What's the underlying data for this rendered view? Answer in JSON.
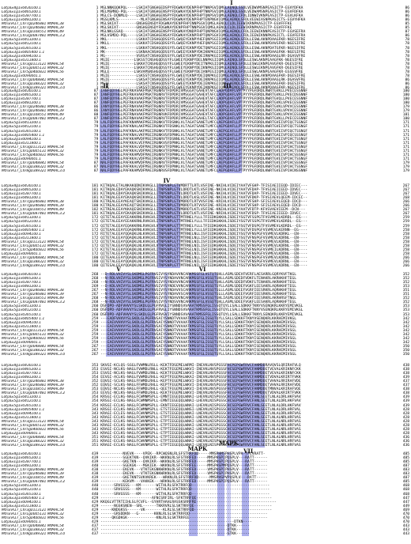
{
  "species_rows": [
    "LotjaGi4g1v0430100.1",
    "LotjaGi1g1v0465200.1",
    "LotjaGi1g1v0387700.1",
    "LotjaGi1g1v0481200.1",
    "MtrunA17_Chr7g0246881 MtMAC38",
    "MtrunA17_Chr7g0246881 MtMAC39",
    "MtrunA17_Chr3g0108551 MtMAC49",
    "MtrunA17_Chr2g0087481 MtMAC3.2",
    "LotjaGi5g1v0413200.1",
    "LotjaGi5g1v0412100.1",
    "LotjaGi5g1v0365100.1",
    "LotjaGi3g1v0405400 1.1",
    "LotjaGi2g1v0094100.1",
    "LotjaGi3g1v0311800.1",
    "MtrunA17_Chr3g0113121 MtMAC54",
    "MtrunA17_Chr1g0005131 MtMAC32",
    "MtrunA17_Chr5g0400831 MtMAC56",
    "LotjaGi2g1v0090001.1",
    "MtrunA17_Chr7g0048841 MtMAC54",
    "MtrunA17_Chr3g0388321 MtMAC32",
    "MtrunA17_Chr8g0389321 MtMAC3.0"
  ],
  "blocks": [
    {
      "starts": [
        "1",
        "1",
        "1",
        "1",
        "1",
        "1",
        "1",
        "1",
        "1",
        "1",
        "1",
        "1",
        "1",
        "1",
        "1",
        "1",
        "1",
        "1",
        "1",
        "1",
        "1"
      ],
      "seqs": [
        "MGLNNKQQKPQL----LSKIATGNGHGEDSPYFDGWKAYDENPFHPTNNPGVIQMGLAENQLSSDLVEDWVMSNPEASICTP-EGVYDFKA",
        "MELMSMNQ-PQL----LSKIATGNGHGENSPYFDGWKAYDENPFHPTNNPSVIQMGLAENQLSSDLVEDWAMSNPEASICTP-EGVFDFKA",
        "MGLCS-DQNMLQ----LSKIATGNGHGENSPYFDGWKAYDENPFHPTQNPSVIQMGLAENQLCFDLIQNWIVKNPEASICTP-EGVLKFKA",
        "MGSLKMLS----------MLATGNGHGENSAYFDGWKAYDENPFHPTENPNGVIQMGLAENQLSFDLVEEWIASNPKASICTS-EGVYHFKA",
        "MGLSKIAT--------GNGHGENSDYFDGWKAYDENPFHPINNPSGVIQMGLAENQLCLDLIEEWIKRNPKASICTP-EGVFFFKE",
        "MGLSKIAT--------GNGHGENSDYFDGWKAYDENPFHPTNNPSGVIQMGLAENQLCLDLIEEWIKRNPKASICTP-EGVFFFKE",
        "MGLNKLGSAQ------LSKIATGNGHGENSPYFDGWKAYDNDPFHPTQNPNGVIQMGLAENQLCFDLIEEWIKNNPEASICTP-EGVSEFRA",
        "MGLVSMDQ-PQL----LSKIATGNGHGENSAYFDGWKAYEKNPFHPTQNPSGVIQMGLAENQLCFDLIEEWIKNNPKASICTL-EGVFEFRA",
        "MKL-------------LSKKATCDSHGQDSSYFLGWQEYEKNPYHEFQNPSGIIQMGLAENQLSFDLLESWLAKNPDAAGFKR-NGESIFRE",
        "MKLL------------LSKKATCDSHGQDSSYFLGWQEYEKNPYHEFQNPSGIIQMGLAENQLSFDLLESWLAKNPDAVGFKR-NGESIFRE",
        "MKL-------------LSKKATCNSHGQDSSYFLGWEEYEKNPYDETQNPSGIIQMGLAENQLSFDLLESWLAKNPDATGFKR-NGESIFRE",
        "MK--------------LSKNAACNSHGQDSSYFLGWEEYEKNPYDKIKNPKGIIQMGLAENQLSFDLLESWLAKNPDAAGFKK-NGESIFRE",
        "MG--------------VSRSATCNSHGQDSSYFLGWEEYEKNPYDEIRNPKGIIQMGLAENQLSFDLLESWLAKNPDAAGLRR-DGASVFRE",
        "MGIE-----------LSKSSTCNSHGQDSSYFLGWEEYEKNPYDELNNPKGIIQMGLAENQLSFDLLESWLAKNPEAAGFKK-NGESIFRE",
        "MGIE-----------LSKKATCNSHGQDSSYFLGWEEYEKNPYDEITNPKGIIQMGLAENQLSFDLLESWLEKNPEAVGFKR-DGESIFRE",
        "MGIE-----------LSKKATCNSHGQDSSYFLGWEEYEKNPYDEIKNPKGIIQMGLAENQLSFDLLESWLEKNPEAVGFKR-DGESIFRE",
        "MGLE-----------LSKVAMSNSHGQDSSYFLGWEEYEKNPYDEIANPEGIIQMGLAENQLSFDLLESWLAKNPEAAGFKR-EGSSVFRE",
        "MGIE------------LSKSSTCNSHGQDSSYFLGWEEYEKNPYDEIQNPKGIIQMGLAENQLSFDLLESWLAKNPDAAGFKR-DGESIFRE",
        "MGIE------------LSKSATCNSHGQDSSYFLGWEEYEKNPYDEIKNPKGIIQMGLAENQLSFDLLESWLAKNPDAAGLRK-DGASVFRE",
        "MGIE------------LSKSATCNSHGQDSSYFLGWEEYEKNPYDEIENPKGIIQMGLAENQLSFDLLESWLAKNPDAAGFKR-DGESIFRE",
        "MGIE------------LSKSSTCNSHGQDSSYFLGWEEYEKNPYDEIKNPKGIIQMGLAENQLSFDLLESWLAKNPDAAGFKR-NGESIFRE"
      ],
      "ends": [
        "86",
        "86",
        "86",
        "86",
        "85",
        "85",
        "87",
        "86",
        "78",
        "78",
        "78",
        "78",
        "78",
        "78",
        "78",
        "78",
        "78",
        "78",
        "86",
        "86",
        "86"
      ]
    },
    {
      "starts": [
        "87",
        "87",
        "87",
        "87",
        "86",
        "86",
        "88",
        "87",
        "79",
        "79",
        "79",
        "79",
        "79",
        "79",
        "79",
        "79",
        "79",
        "79",
        "87",
        "87",
        "87"
      ],
      "seqs": [
        "IANFQDYHGLPEFRKAVAKFMSKTRGNRVTFDPDRIVMSGGATGAHEVTAFCLADPGDAFLVPTPYYPGFDRDLRWRTGVKLLPVECESSNNF",
        "IANFQDYHGLPEFRKAVAKFMSKTRGNRVTFDPDRIVMSGGATGAHEVTAFCLADPGDAFLVPIPYYPGFDRDLRWRTGVKLLPVECDSSNNF",
        "IANFQDYHGLPEFRKAVAKFMSKTRGNRVTFDPDRIVMSGGATGAHEVTAFCLADPGDAFLVPTPYYPGFDRDLRWRTGVQLLPVECESSNNF",
        "IANFQDYHGLPEFRKAVAKFMSKTRGNRVTFDPERIVMSGGATGAHEVTAFCLADPGDAFLVPTPYYPGFDRDLRWRTGVKLVPVECESSNNF",
        "IANYQDYHGLPEFRNAVAKFMSRTRGNRVTFDPDRIVMSGGATGAHEVTAFCLADPGEAFLVPIPYYPGFDRDLRWRTGVKLVPVVCESSNNF",
        "IANYQDYHGLPEFRNAVAKFMSRTRGNRVTFDPDRIVMSGGATGAHEVTAFCLADPGEAFLVPIPYYPGFDRDLRWRTGVKLVPVVCESSNNF",
        "IANFQDYHGLPEFRNAVAKFMSRTRGNRVKFDPDRIVMSGGATGAHEVTAFCLADPGDAFLVPTPYYPGFDRDLRWRTGVKLVPVVCESSNNF",
        "IANFQDYHGLPEFRNAVAKFMSRTRGNRVTFDPDRIVMSGGATGAHELTAFCLADPGDAFLVPTPYYPGFDRDLRWRTGVKLLPVECESSNNF",
        "LALFQDYHGLPAFKNAMAKFMSEIRGNKVTFDSNKLVLTAGATSANETLMFCLAEPGDAFLLPTPYYPGFDRDLKWRTGVEIVPIQCTSSNGF",
        "LALFQDYHGLPAFKNALAKFMSEIRGNKVTFDSNKLVLTAGATSANETLMFCLAEPGDAFLLPTPYYPGFDRDLKWRTGVEIVPIQCTSSNGF",
        "LALFQDYHGLPAFKNALAKFMSEIRGNKVTFDSNKLVLTAGATSANETLMFCLAEPGEAFLLPTPYYPGFDRDLKWRTGVEIVPIQCTSSNGF",
        "LALFQDYHGLPAFKNALVKFMSEIRGNKVSFDPNKLVLTAGATSANETLMFCLAEPGDAFLLPTPYYPGFDRDLKWRTGAEIVPIQCSSSNGF",
        "LALFQDYHGLPAFKKAMVDFMSEIRGNRVTFDSNNLVLTAGATSANETLMFCLAEPGDAFLLPTPYYPGFDRDLKWRTGVEIVPIHCTSSNGF",
        "LALFQDYHGLPAFKKALVEFMAEIRGNKVSFDPNKLVLTAGATSANETLMFCLAEPGDAFLLPTPYYPGFDRDLKWRTGVEIVPIHCTSSNGF",
        "LALFQDYHGLPAFKKALVDFMAEIRGNKVTFDPNKLVLTAGATSANETLMFCLAEPGDAFLLPTPYYPGFDRDLKWRTGVEIVPIHCTSSNGF",
        "LALFQDYHGLPAFKKALVDFMAEIRGNKVTFDPNKLVLTAGATSANETLMFCLAEPGDAFLLPTPYYPGFDRDLKWRTGVEIVPIHCTSSNGF",
        "LALFQDYHGLPAFKKAMVDFMAEIRGNRVTFDPNKLVLTAGATSANETLMFCLAEPGDAFLLPTPYYPGFDRDLKWRTGVEIVPIHCSSSNGF",
        "LALFQDYHGLPAFKKALVDFMSEIRGNKVTFDPNKLVLTAGATSANETLMFCLAEPGDAFLLPTPYYPGFDRDLKWRTGVEIVPIHCTSSNGF",
        "NALFQDYHGLPAFKKAMVDFMAEIRGNRVTFDPNKLVLTAGATSANETLMFCLAEPGDAFLLPTPYYPGFDRDLKWRTGVEIVPIHCSSSNGF",
        "NALFQDYHGLPAFKKALVDFMSEIRGNKVTFDPNKLVLTAGATSANETLMFCLAEPGDAFLLPTPYYPGFDRDLKWRTGVEIVPIHCTSSNGF",
        "NALFQDYHGLPAFKKAMVDFMAEIRGNRVSFDPNKLVLTAGATSANETLMFCLAEPGDAFLLPTPYYPGFDRDLKWRTGVEIVPIHCNSSNNF"
      ],
      "ends": [
        "180",
        "180",
        "180",
        "180",
        "179",
        "179",
        "181",
        "180",
        "171",
        "171",
        "171",
        "171",
        "171",
        "171",
        "171",
        "171",
        "171",
        "171",
        "179",
        "179",
        "179"
      ]
    },
    {
      "starts": [
        "181",
        "181",
        "181",
        "181",
        "180",
        "180",
        "182",
        "181",
        "172",
        "172",
        "172",
        "172",
        "172",
        "172",
        "172",
        "172",
        "172",
        "172",
        "180",
        "180",
        "180"
      ],
      "seqs": [
        "KITKQALETALNKAKQDNIKVKGLLITNPSNPLGTVMDRTTLRTLVSFINE-NKIHLVCDEIYAATVFGHP-TFISIAEIIEQD-IDIEC---",
        "KITKQALEDAYEKAQKSNIKVKGLLITNPSNPLGTVLDRDTLKTLVSFINE-NKIHLVCDEIYAATVFDAP-TFVSIAEIIEED-IDVEC---",
        "KITKQALEDAYEKAQKSNIKVKGLLITNPSNPLGTVLDRDTLKTLVSFINE-NKIHLVCDEIYAATVFDAP-TFVSIAEIIEED-IDVEC---",
        "KITKQALEEAYEKAQKSNIKVKGLLITNPSNPLGTVLDRDTLKSLVSFINE-NKIHLVCDEIYAATVFDKP-TFVSIAEVLQEEM-IDCEC--",
        "KITREALEEAYKEAQTSNIKVKGLLITNPSNPLGTVMDRDTLRTVVSFINE-KRIHLVCDEIYAATVFSHP-SFISIAEVLEQED-IDCD---",
        "KITREALEEAYKEAQTSNIKVKGLLITNPSNPLGTVMDRDTLRTVVSFINE-KRIHLVCDEIYAATVFSHP-SFISIAEVLEQED-IDCD---",
        "KITREALEEAYKKAQESNIKVKGLLITNPSNPLGTVMDRDTLKTLVSFINE-KNIHLVCDEIYAATVFDTP-KFVSVAEVIEEM--DCN---",
        "KITKQALEEAYEKAQKSNIKVKGLLITNPSNPLGTVLDRDTLKTLVSFINE-NRIHLVCDEIYAATVFDSP-TFVSIAEIIEED-IDVEC---",
        "QITETALEEAYEEAKKRNLRVKGVLITNPSNPLGTTMTRNELYLLLTFIEDKGKKHLISDEIYSGTVFSSPGTFVSVMEVLKDRDL--EG---",
        "QITETALEEAYEEAKKRNLRVKGVLITNPSNPLGTTMTRNELYLLLTFIEDKGKKHLISDEIYSGTVFSSPGTFVSVMEVLKDRDL--EG---",
        "QITETALEEAYEQAKKRNLRVKGVLVTNPSNPLGTTMTRNELYLLLTFIEDKGKKHLISDEIYSGTVFDSPGTFVSVMEVLKDRDL--EG---",
        "QITEAALEEAYEQAQKRNLKVKGVLITNPSNPLGTTMTRNELYLLLSFIEDKGKKHLISDEIYSGTVFDSPGFVSVMEVLKERNN--EG----",
        "RITETALEEAYQQAQKLNLKVKGVLITNPSNPLGTTMTRNELNLLISFIEDKGKKHLISDEIYSGTVFNSPGFVSVMEVLKDRKL--EN----",
        "QITETALEEAYQQAQKLNLKVKGVLITNPSNPLGTTMTRNELNLLISFIEDKGKKHLISDEIYSGTVFNSPGFVSVMEVLKDRNL--EN----",
        "QITETALEEAYQQAQKLNLKVKGVLVTNPSNPLGTTMTRNELNILISFIEDKGKKHLISDEIYSGTVFNSPGFVSVMEVLKDRNL--EN----",
        "QITETALEEAYQQAQKLNLKVKGVLVTNPSNPLGTTMTRNELNILISFIEDKGKKHLISDEIYSGTVFNSPGFVSVMEVLKDRNL--EN----",
        "KITETALEEAYQQAQKLNLKVKGVLITNPSNPLGTTMTRSELNILISFIEDKGKKHLISDEIYSGTVFNSPGFVSVMEILKDRNL--EN----",
        "QITETALEEAYQEAQKLNLKVKGVLITNPSNPLGTTMTRNELNILISFIEDKGKKHLISDEIYSGTVFNSPGFVSVMEVLKDRNL--EN----",
        "QITEAALEEAYQQAQKLNLKVKGVLITNPSNPLGTTMTRNELNLLISFIEDKGKKHLISDEIYSGTVFNSPGFVSVMEVLKDRNL--EN----",
        "QITETALEEAYQQAQKLNLKVKGVLITNPSNPLGTTMTRNELNILISFIEDKGKKHLISDEIYSGTVFNSPGFVSVMEVLKDRNL--EN----",
        "QITESALEEAYQQAQKLNLKVKGVLITNPSNPLGTTMTRNELNILISFIEDKGKKHLISDEIYSGTVFNSPGFVSVMEVLKDRNL--EN----"
      ],
      "ends": [
        "267",
        "267",
        "267",
        "268",
        "266",
        "266",
        "267",
        "267",
        "259",
        "259",
        "259",
        "258",
        "258",
        "258",
        "258",
        "258",
        "258",
        "258",
        "266",
        "266",
        "266"
      ]
    },
    {
      "starts": [
        "268",
        "268",
        "268",
        "269",
        "267",
        "267",
        "268",
        "268",
        "260",
        "260",
        "260",
        "259",
        "259",
        "259",
        "259",
        "259",
        "259",
        "259",
        "267",
        "267",
        "267"
      ],
      "seqs": [
        "--D-RDLVHIVYSLSKDMGLPGFRVGIVYSYNDAVVNCARKMSSFGLVSTQTQHLLASMLSDEVFVERFLAESARRLGQRYKVFTKGL",
        "--N-RDLVHIVYSLSKDMGLPGFRVGIVYSYNDAVVNCARKMSSFGLVSSQTQHLLASMLSDEDFVDKFLTENAKRLAKRHKHFTEGL",
        "--N-RDLVHIVYSLSKDMGLPGFRVGIVYSYNDAVVNCARKMSSFGLVSSQTQHLLASMLSDEDFVDKFLTENAKRLAKRHKHFTEGL",
        "--D-KDLVHIVYSLSKDMGLPGFRVGIVYSYNDEVVNCARKMSSFGLVSSQTQYLLASMLSDDEFVGKFLEESAKRLAQRHKHFTEGL",
        "--N-RDLVHIVYSLSKDMGLPGFRVGIVYSYNDAVVSCARKMSSFGLVSSQTQLLLASMLSDEEFVGRFIEESRKRLAQRHKHFTEGL",
        "--N-RDLVHIVYSLSKDMGLPGFRVGIVYSYNDAVVSCARKMSSFGLVSSQTQLLLASMLSDEEFVGRFIEESRKRLAQRHKHFTEGL",
        "--N-RDLVHIVYSLSKDMGLPGFRVGIVYSYNDAVVNCARKMSSFGLVSSQTQHLIASMLSDEEFVGKFIEESRKRLAKRHRSFTNGL",
        "--N-RDLVHIVYSLSKDMGLPGFRVGIVYSYNDSVVNCARKMSSFGLVSSQTQHLLASMLSDEEFVGKFLEESAKRLAQRHKHFTEGL",
        "DSFDPD-ADFVHVVYSLSKDLGLPGFRVGLIYSNNDSVVAAATKMSSFGLISSQTQYLLSALLSDKKFTKNYVSENQKRLKKRYEMIVKGL",
        "DSFDPD-ADFVHVVYSLSKDLGLPGFRVGLIYSNNDSVVAAATKMSSFGLISSQTQYLLSALLSDKKFTKNYVSENQKRLKKRYEMIVKGL",
        "DSFDPD-ADFVHVVYSLSKDLGLPGFRVGVIYSNNDSVVAAATKMSSFGLISSQTQYLLSALLSDKKFTKNYLSENQKRLKKRYEMIVKGL",
        "---EADFVHVVYSLSKDLGLPGFRVGAIYSNNDTVVAAATKMSSFGLISSQTQYLLSALLSDKKFTKNYVSENQKRLKKRHEMIVKGL",
        "---EAEVVHVVYSLSKDLGLPGFRVGAIYSNNDTVVAAATKMSSFGLISSQTQYLLSALLSDKKFTKNYISENQKRLKKRHEMIVSGL",
        "---EAEVVHVVYSLSKDLGLPGFRVGAIYSNNDTVVAAATKMSSFGLISSQTQYLLSALLSDKKFTKNYISENQKRLKKRHEMIVSGL",
        "---EAEVVHVVYSLSKDLGLPGFRVGAIYSNNDTVVAAATKMSSFGLISSQTQYLLSALLSDKKFTKNYISENQKRLKKRHEMIVSGL",
        "---EAEVVHVVYSLSKDLGLPGFRVGAIYSNNDTVVAAATKMSSFGLISSQTQYLLSALLSDKKFTKNYISENQKRLKKRHEMIVSGL",
        "---EAEVVHVVYSLSKDLGLPGFRVGAIYSNNDTVVAAATKMSSFGLISSQTQYLLSALLSDKKFTKNYISENQKRLKKRHEMIVSGL",
        "---EAEVVHVVYSLSKDLGLPGFRVGAIYSNNDTVVAAATKMSSFGLISSQTQYLLSALLSDKKFTKNYISENQKRLKKRHEMIVSGL",
        "---EAEVVHVVYSLSKDLGLPGFRVGAIYSNNDTVVAAATKMSSFGLISSQTQYLLSALLSDKKFTKNYISENQKRLKKRHEMIVSGL",
        "---EAEVVHVVYSLSKDLGLPGFRVGAIYSNNDTVVAAATKMSSFGLISSQTQYLLSALLSDKKFTKNYISENQKRLKKRHEMIVSGL",
        "---EAEVVHVVYSLSKDLGLPGFRVGAIYSNNDTVVAAATKMSSFGLISSQTQYLLSALLSDKKFTKNYISENQKRLKKRHEMIVSGL"
      ],
      "ends": [
        "352",
        "352",
        "352",
        "353",
        "351",
        "351",
        "352",
        "352",
        "353",
        "353",
        "353",
        "342",
        "342",
        "342",
        "342",
        "342",
        "342",
        "342",
        "350",
        "350",
        "350"
      ]
    },
    {
      "starts": [
        "353",
        "353",
        "353",
        "354",
        "352",
        "352",
        "353",
        "353",
        "354",
        "354",
        "354",
        "343",
        "343",
        "343",
        "343",
        "343",
        "343",
        "343",
        "351",
        "351",
        "351"
      ],
      "seqs": [
        "SKVGI-KCLQS-SGGLFVWMNLRSLL-KEKTFDSEMELWRMI-INEVKLNVSPGSSFHCPEPGWFRVCFANMDDRAVQVSLQRIRAFVLQ",
        "ESVGI-NCLKS-NAGLFVWMDLRNLL-KEKTFEGEMELWKVI-INEVKLNVSPGSSFHCSEPGWFRVCFANMDDETVEVALKRIKNFCKK",
        "ESVGI-NCLKS-NAGLFVWMDLRNLL-KEKTFEGEMELWKVI-INEVKLNVSPGSSFHCSEPGWFRVCFANMDDETVEVALKRIKNFCKK",
        "EEVGI-ACLKS-NAGLFVWMDLRHLL-KEPTFEGEMALWKAI-INEVKLNVSPGSSFHCSEPGWFRVCFANMDEETVDVALKRIRTFVKK",
        "EQVGI-SCLKS-NAGLFFWMDLRHLL-KEPTFEGEMELWKVI-IHEVKLNVSPGSSFHCSEPGWFRVCFANMDDETVHVALRRIRAFVDE",
        "EQVGI-SCLKS-NAGLFFWMDLRHLL-KEPTFEGEMELWKVI-IHEVKLNVSPGSSFHCSEPGWFRVCFANMDDETVHVALRRIRAFVDE",
        "EQVGI-NCLKS-NAGLFFWMDLRHLL-QEETFEGEMELWKVI-IHEVKLNVSPGSSFHCTEPGWFRVCFANMDDETMNVALKRIRAFVQE",
        "EEVGI-NCLKS-NAGLFFWMDLRHLL-KEKTFEGEMELWKVI-INEVKLNVSPGSSFHCSEPGWFRVCFANMDDETVDVALKRIRTFVKK",
        "KRSGI-ECLKG-NAGLFCWMNMSPLL-EMNTIEGEQQLWNAI-LHEVKLNISPGSSCHCSEPGWFRVCFANLSEETLNLALDRLHKFVAV",
        "KRSGI-ECLKG-NAGLFCWMNMSPLL-EMNTIEGEQQLWNAI-LHEVKLNISPGSSCHCSEPGWFRVCFANLSEETLNLALDRLHKFVAV",
        "KRSGI-ECLKG-NAGLFCWMNMSPLL-EKNTIEGEQQLWNAI-LHEVKLNISPGSSCHCSEPGWFRVCFANLSEETLNLALDRLHKFVAV",
        "KRSGI-ECLKS-NAGLFCWMNMSPLL-ETSTIEGEQQLWNSI-LNEVKLNISPGSSCHCSEPGWFRVCFANLSEETLNLALDRLHRFVAL",
        "KRAGI-ECLES-NAGLFCWVNMSPLL-ETSTIEGEQQLWNAI-LNEVKLNISPGSSCHCSEPGWFRVCFANLSEETLNLALDRLHRFVAS",
        "KRAGI-ECLKS-NAGLFCWVNMSPLL-ETPTIEGEQQLWNAI-LNEVKLNISPGSSCHCSEPGWFRVCFANLSEETLNLALNRLHRFVAS",
        "KRAGI-ECLKS-NAGLFCWVNMSPLL-ETPTIEGEQQLWNAI-LNEVKLNISPGSSCHCSEPGWFRVCFANLSEETLNLALNRLHRFVAS",
        "KRAGI-ECLKS-NAGLFCWVNMSPLL-ETPTIEGEQQLWNAI-LNEVKLNISPGSSCHCSEPGWFRVCFANLSEETLNLALNRLHRFVAS",
        "KRAGI-ECLKS-NAGLFCWVNMSPLL-ETPTIEGEQQLWNAI-LNEVKLNISPGSSCHCSEPGWFRVCFANLSEETLNLALNRLHRFVAS",
        "KRAGI-ECLKS-NAGLFCWVNMSPLL-ETPTIEGEQQLWNAI-LNEVKLNISPGSSCHCSEPGWFRVCFANLSEETLNLALNRLHRFVAS",
        "KRAGI-ECLKS-NAGLFCWVNMSPLL-ETPTIEGEQQLWNAI-LNEVKLNISPGSSCHCSEPGWFRVCFANLSEETLNLALNRLHRFVAS",
        "KRAGI-ECLKS-NAGLFCWVNMSPLL-ETPTIEGEQQLWNAI-LNEVKLNISPGSSCHCSEPGWFRVCFANLSEETLNLALNRLHRFVAS",
        "KRAGI-ECLKS-NAGLFCWVNMSPLL-ETPTIEGEQQLWNAI-LNEVKLNISPGSSCHCSEPGWFRVCFANLSEETLNLALNRLHRFVAS"
      ],
      "ends": [
        "438",
        "438",
        "438",
        "439",
        "437",
        "437",
        "438",
        "438",
        "439",
        "439",
        "439",
        "428",
        "428",
        "428",
        "428",
        "428",
        "428",
        "428",
        "436",
        "436",
        "436"
      ]
    },
    {
      "starts": [
        "439",
        "439",
        "439",
        "440",
        "438",
        "438",
        "439",
        "439",
        "440",
        "440",
        "440",
        "429",
        "429",
        "429",
        "429",
        "429",
        "429",
        "429",
        "437",
        "437",
        "437"
      ],
      "seqs": [
        "----------NVEVK----VPEK--RPCWQSNLRLSFSTRRFDD-----MMSPHMSPHSPLVPA-TPLVRATT-",
        "----------SGEKTKN--QVKIKR--WKKNLRLSFSTRRFED-----MMSPHSPIPQSPLV---RATT------",
        "----------GKETKN---QVKIKR--WKKNLRLSFSTRRFED-----MMSPHSPIPQSPLV---RATT------",
        "----------SGEKGK---MGKIEK--WKKNLRLSFSTRRFEE-----MMSPHSPMPQSPLV---RATT------",
        "----------EKEVK---VTKTEKGNKWRKNLRLSFSTRRFED-----VMSPHSPIPHSPLV---RATT------",
        "----------EKEVK---VTKTEKGNKWRKNLRLSFSTRRFED-----VMSPHSPIPHSPLV---RATT------",
        "----------GKETKNTSVKVKREK---WRKNLRLSFSTRRFDD-----MMSPHSPVPQSPLV---RATT-----",
        "----------KEKVM---VAKKEK---WRKNLRLSFSTRRFED-----MMSPHSPIPQSPLV---RATT------",
        "------SRVGSSS---KM-------WITHLRLSFKTRRFQD-----------------------------------",
        "------SRVGSSS---KM-------WITHLRLSFKTRRFQD-----------------------------------",
        "------SRVGSSS---KM-------WITHLRLSFKTRRFQD-----------------------------------",
        "-----------------------AFNCSRFIRL-SFKTRRFQE----------------------------------",
        "KKQGLVTTRTIIHLSLFCVFL--GYHRTHAHLRASSKSRRFRE------------------------------------",
        "------NGSKSNEN--SRL------TKKRVRLSLSKTRRFQE-----------------------------------",
        "-----KNDGKSS------VK--------KLRLSLSKTRRFQD-----------------------------------",
        "------GRSDDKN---G-------KKNLRLSLSKTRRFDD-----------------------------------",
        "-----QKGDKGK-------------KNLRLSLSKTRRFEE-----------------------------------",
        "------------------------------------------------------------DTKN----",
        "---------------------------------------------------------DTKK------",
        "---------------------------------------------------------DTKK------",
        "---------------------------------------------------------GTKK------"
      ],
      "ends": [
        "485",
        "485",
        "485",
        "487",
        "483",
        "483",
        "487",
        "485",
        "468",
        "468",
        "468",
        "447",
        "447",
        "449",
        "469",
        "470",
        "470",
        "470",
        "443",
        "443",
        "443"
      ]
    }
  ],
  "motifs": {
    "I": "I",
    "II": "II",
    "III": "III",
    "IV": "IV",
    "V": "V",
    "VI": "VI",
    "VII": "VII",
    "MAPK1": "MAPK",
    "MAPK2": "MAPK"
  }
}
